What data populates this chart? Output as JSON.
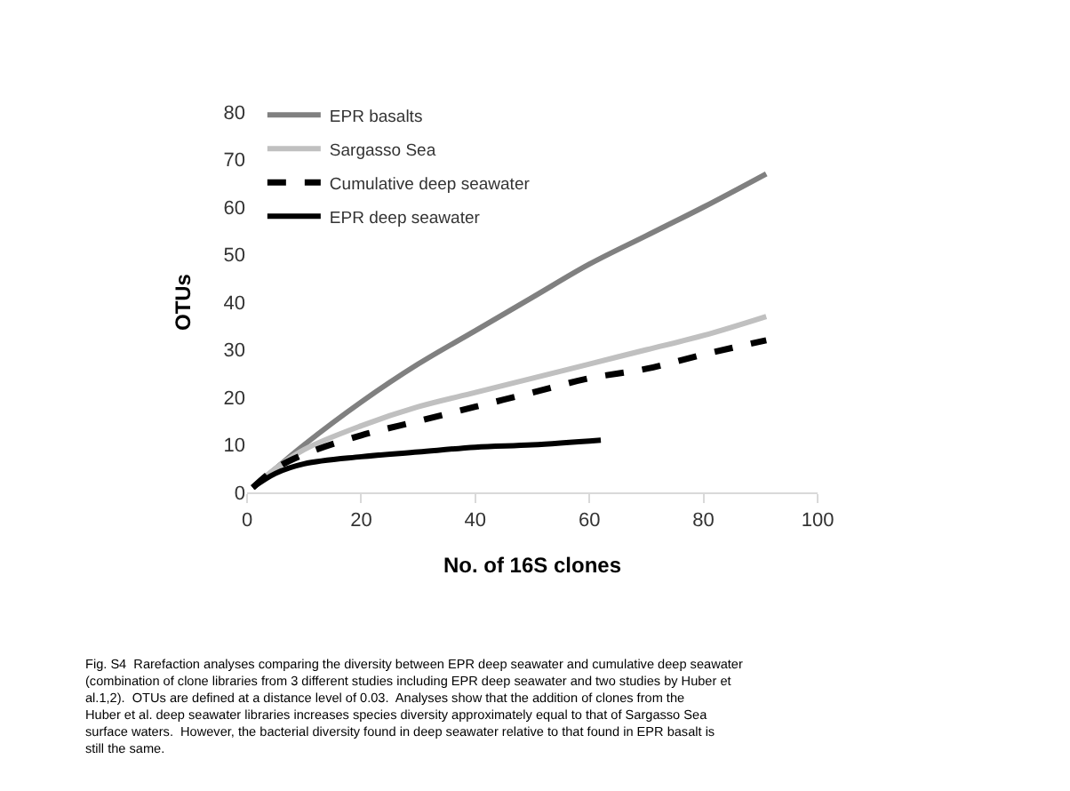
{
  "chart_data": {
    "type": "line",
    "xlabel": "No. of 16S clones",
    "ylabel": "OTUs",
    "xlim": [
      0,
      100
    ],
    "xticks": [
      0,
      20,
      40,
      60,
      80,
      100
    ],
    "ylim": [
      0,
      80
    ],
    "yticks": [
      0,
      10,
      20,
      30,
      40,
      50,
      60,
      70,
      80
    ],
    "legend": "top left",
    "marker": "none",
    "series": [
      {
        "name": "EPR basalts",
        "color": "#808080",
        "line_style": "solid",
        "x": [
          1,
          5,
          10,
          20,
          30,
          40,
          50,
          60,
          70,
          80,
          91
        ],
        "values": [
          1,
          5,
          10,
          19,
          27,
          34,
          41,
          48,
          54,
          60,
          67
        ]
      },
      {
        "name": "Sargasso Sea",
        "color": "#c0c0c0",
        "line_style": "solid",
        "x": [
          1,
          5,
          10,
          20,
          30,
          40,
          50,
          60,
          70,
          80,
          91
        ],
        "values": [
          1,
          5,
          9,
          14,
          18,
          21,
          24,
          27,
          30,
          33,
          37
        ]
      },
      {
        "name": "Cumulative deep seawater",
        "color": "#000000",
        "line_style": "dashed",
        "x": [
          1,
          5,
          10,
          20,
          30,
          40,
          50,
          60,
          70,
          80,
          91
        ],
        "values": [
          1,
          5,
          8,
          12,
          15,
          18,
          21,
          24,
          26,
          29,
          32
        ]
      },
      {
        "name": "EPR deep seawater",
        "color": "#000000",
        "line_style": "solid",
        "x": [
          1,
          5,
          10,
          20,
          30,
          40,
          50,
          62
        ],
        "values": [
          1,
          4,
          6,
          7.5,
          8.5,
          9.5,
          10,
          11
        ]
      }
    ],
    "annotations": [
      "Fig. S4  Rarefaction analyses comparing the diversity between EPR deep seawater and cumulative deep seawater (combination of clone libraries from 3 different studies including EPR deep seawater and two studies by Huber et al.1,2).  OTUs are defined at a distance level of 0.03.  Analyses show that the addition of clones from the Huber et al. deep seawater libraries increases species diversity approximately equal to that of Sargasso Sea surface waters.  However, the bacterial diversity found in deep seawater relative to that found in EPR basalt is still the same."
    ]
  }
}
